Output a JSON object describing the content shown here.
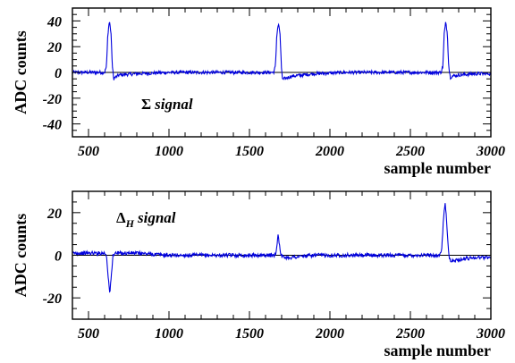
{
  "chart_data": [
    {
      "type": "line",
      "ylabel": "ADC counts",
      "xlabel": "sample number",
      "annotation": "signal",
      "annotation_symbol": "Σ",
      "annotation_sub": "",
      "xlim": [
        400,
        3000
      ],
      "ylim": [
        -50,
        50
      ],
      "xticks": [
        500,
        1000,
        1500,
        2000,
        2500,
        3000
      ],
      "yticks": [
        40,
        20,
        0,
        -20,
        -40
      ],
      "line_color": "#0000dd",
      "grid": false,
      "series": [
        {
          "x": [
            400,
            600,
            612,
            620,
            630,
            640,
            648,
            656,
            664,
            690,
            800,
            1000,
            1300,
            1500,
            1650,
            1662,
            1670,
            1680,
            1690,
            1698,
            1706,
            1716,
            1760,
            1900,
            2100,
            2300,
            2500,
            2690,
            2702,
            2710,
            2720,
            2730,
            2738,
            2748,
            2756,
            2800,
            2900,
            3000
          ],
          "y": [
            0,
            0,
            5,
            30,
            40,
            30,
            5,
            -5,
            -4,
            -2,
            -1,
            0,
            0,
            0,
            0,
            5,
            30,
            38,
            30,
            5,
            -6,
            -5,
            -3,
            -1,
            0,
            0,
            0,
            0,
            5,
            30,
            39,
            30,
            5,
            -4,
            -3,
            -2,
            -1,
            -1
          ]
        }
      ]
    },
    {
      "type": "line",
      "ylabel": "ADC counts",
      "xlabel": "sample number",
      "annotation": "signal",
      "annotation_symbol": "Δ",
      "annotation_sub": "H",
      "xlim": [
        400,
        3000
      ],
      "ylim": [
        -30,
        30
      ],
      "xticks": [
        500,
        1000,
        1500,
        2000,
        2500,
        3000
      ],
      "yticks": [
        20,
        0,
        -20
      ],
      "line_color": "#0000dd",
      "grid": false,
      "series": [
        {
          "x": [
            400,
            600,
            612,
            620,
            632,
            644,
            652,
            662,
            690,
            800,
            1000,
            1300,
            1500,
            1660,
            1670,
            1678,
            1688,
            1698,
            1708,
            1760,
            1900,
            2100,
            2300,
            2500,
            2680,
            2694,
            2704,
            2716,
            2726,
            2736,
            2746,
            2756,
            2800,
            2900,
            3000
          ],
          "y": [
            1,
            1,
            0,
            -8,
            -18,
            -8,
            0,
            1,
            1,
            1,
            0,
            0,
            0,
            0,
            4,
            10,
            4,
            0,
            -1,
            -1,
            0,
            0,
            0,
            0,
            0,
            2,
            15,
            25,
            15,
            2,
            -2,
            -3,
            -2,
            -1,
            -1
          ]
        }
      ]
    }
  ]
}
